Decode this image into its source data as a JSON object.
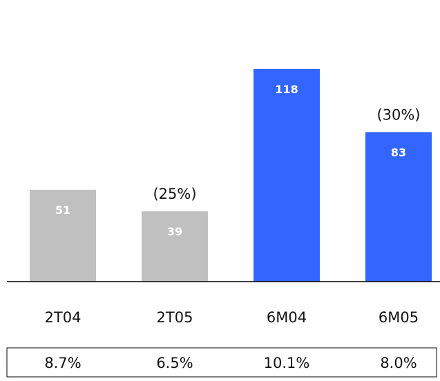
{
  "chart_data": {
    "type": "bar",
    "categories": [
      "2T04",
      "2T05",
      "6M04",
      "6M05"
    ],
    "values": [
      51,
      39,
      118,
      83
    ],
    "data_labels": [
      "51",
      "39",
      "118",
      "83"
    ],
    "bar_colors": [
      "#c0c0c0",
      "#c0c0c0",
      "#3366ff",
      "#3366ff"
    ],
    "ylim": [
      0,
      118
    ],
    "grid": false,
    "legend": "none",
    "annotations": [
      {
        "category": "2T05",
        "text": "(25%)"
      },
      {
        "category": "6M05",
        "text": "(30%)"
      }
    ],
    "table_row": [
      "8.7%",
      "6.5%",
      "10.1%",
      "8.0%"
    ]
  }
}
